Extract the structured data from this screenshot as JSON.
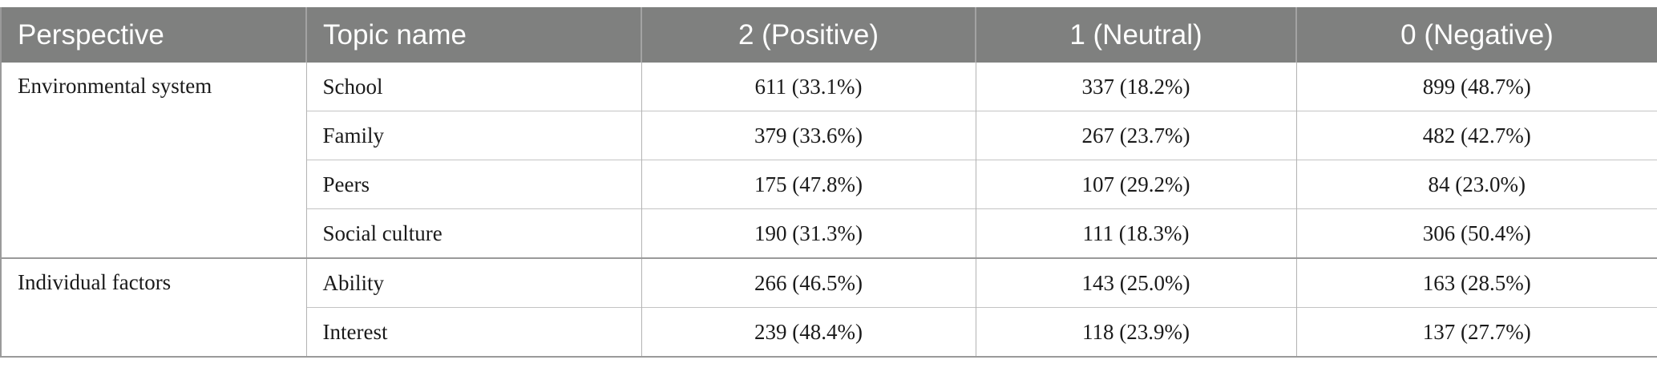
{
  "table": {
    "headers": [
      "Perspective",
      "Topic name",
      "2 (Positive)",
      "1 (Neutral)",
      "0 (Negative)"
    ],
    "groups": [
      {
        "perspective": "Environmental system",
        "rows": [
          {
            "topic": "School",
            "positive": "611 (33.1%)",
            "neutral": "337 (18.2%)",
            "negative": "899 (48.7%)"
          },
          {
            "topic": "Family",
            "positive": "379 (33.6%)",
            "neutral": "267 (23.7%)",
            "negative": "482 (42.7%)"
          },
          {
            "topic": "Peers",
            "positive": "175 (47.8%)",
            "neutral": "107 (29.2%)",
            "negative": "84 (23.0%)"
          },
          {
            "topic": "Social culture",
            "positive": "190 (31.3%)",
            "neutral": "111 (18.3%)",
            "negative": "306 (50.4%)"
          }
        ]
      },
      {
        "perspective": "Individual factors",
        "rows": [
          {
            "topic": "Ability",
            "positive": "266 (46.5%)",
            "neutral": "143 (25.0%)",
            "negative": "163 (28.5%)"
          },
          {
            "topic": "Interest",
            "positive": "239 (48.4%)",
            "neutral": "118 (23.9%)",
            "negative": "137 (27.7%)"
          }
        ]
      }
    ]
  }
}
